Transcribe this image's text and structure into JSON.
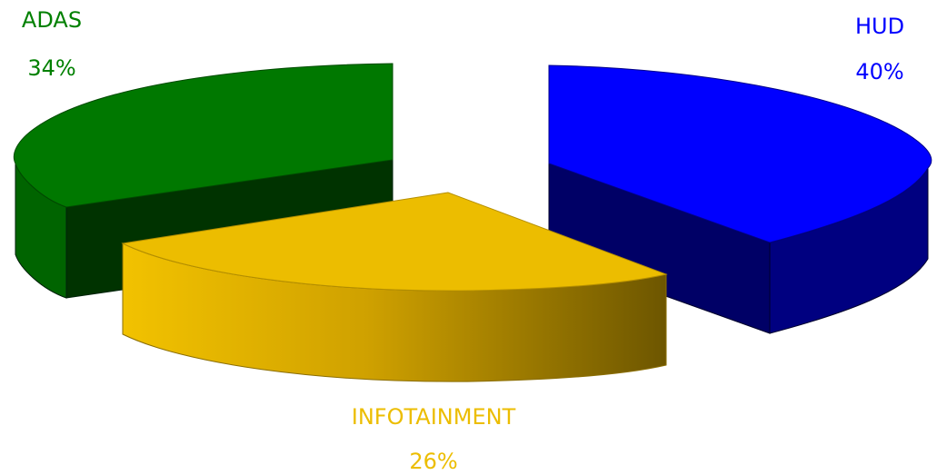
{
  "chart_data": {
    "type": "pie",
    "style": "3d-exploded",
    "title": "",
    "legend": "none",
    "slices": [
      {
        "name": "HUD",
        "value": 40,
        "label": "40%",
        "color": "#0000ff",
        "side_color": "#000066"
      },
      {
        "name": "INFOTAINMENT",
        "value": 26,
        "label": "26%",
        "color": "#ecbd00",
        "side_color": "#7a5e00"
      },
      {
        "name": "ADAS",
        "value": 34,
        "label": "34%",
        "color": "#008000",
        "side_color": "#003300"
      }
    ]
  }
}
